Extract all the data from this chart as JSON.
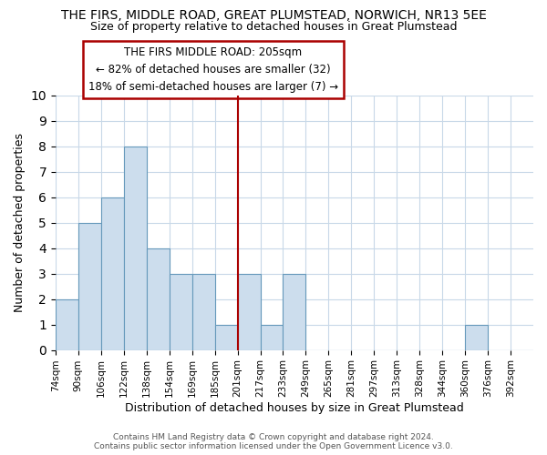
{
  "title1": "THE FIRS, MIDDLE ROAD, GREAT PLUMSTEAD, NORWICH, NR13 5EE",
  "title2": "Size of property relative to detached houses in Great Plumstead",
  "xlabel": "Distribution of detached houses by size in Great Plumstead",
  "ylabel": "Number of detached properties",
  "bin_labels": [
    "74sqm",
    "90sqm",
    "106sqm",
    "122sqm",
    "138sqm",
    "154sqm",
    "169sqm",
    "185sqm",
    "201sqm",
    "217sqm",
    "233sqm",
    "249sqm",
    "265sqm",
    "281sqm",
    "297sqm",
    "313sqm",
    "328sqm",
    "344sqm",
    "360sqm",
    "376sqm",
    "392sqm"
  ],
  "bar_heights": [
    2,
    5,
    6,
    8,
    4,
    3,
    3,
    1,
    3,
    1,
    3,
    0,
    0,
    0,
    0,
    0,
    0,
    0,
    1,
    0,
    0
  ],
  "bar_color": "#ccdded",
  "bar_edge_color": "#6699bb",
  "reference_line_after_label": "185sqm",
  "reference_line_color": "#aa0000",
  "annotation_title": "THE FIRS MIDDLE ROAD: 205sqm",
  "annotation_line1": "← 82% of detached houses are smaller (32)",
  "annotation_line2": "18% of semi-detached houses are larger (7) →",
  "annotation_box_color": "#ffffff",
  "annotation_box_edge": "#aa0000",
  "ylim": [
    0,
    10
  ],
  "yticks": [
    0,
    1,
    2,
    3,
    4,
    5,
    6,
    7,
    8,
    9,
    10
  ],
  "footer1": "Contains HM Land Registry data © Crown copyright and database right 2024.",
  "footer2": "Contains public sector information licensed under the Open Government Licence v3.0.",
  "background_color": "#ffffff",
  "grid_color": "#c8d8e8"
}
